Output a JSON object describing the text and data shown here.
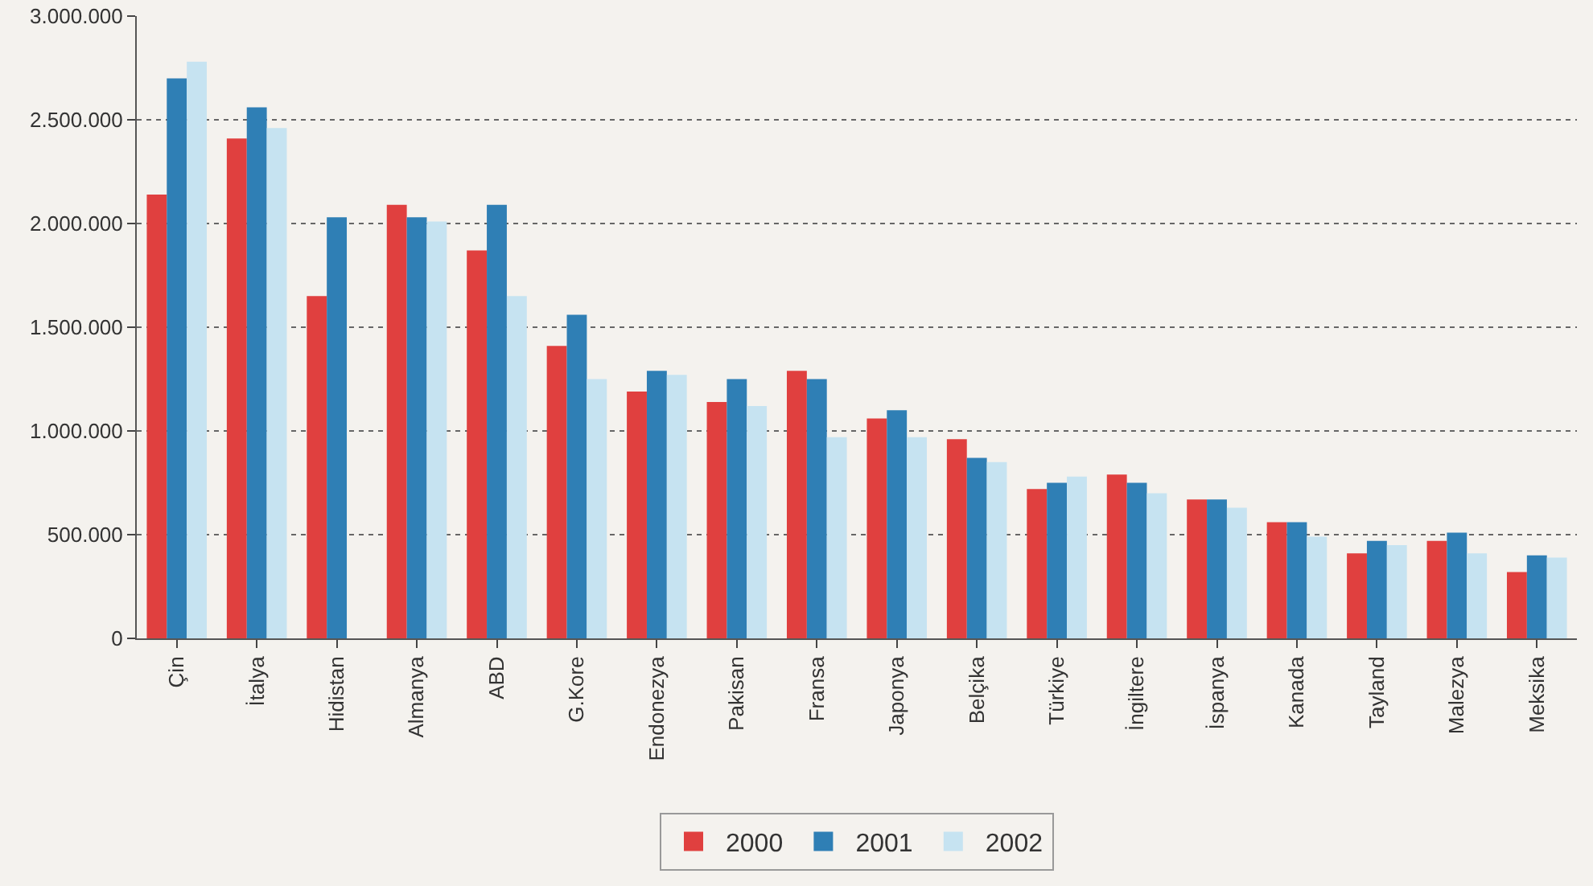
{
  "chart_data": {
    "type": "bar",
    "categories": [
      "Çin",
      "İtalya",
      "Hidistan",
      "Almanya",
      "ABD",
      "G.Kore",
      "Endonezya",
      "Pakisan",
      "Fransa",
      "Japonya",
      "Belçika",
      "Türkiye",
      "İngiltere",
      "İspanya",
      "Kanada",
      "Tayland",
      "Malezya",
      "Meksika"
    ],
    "series": [
      {
        "name": "2000",
        "color": "#e0403f",
        "values": [
          2140000,
          2410000,
          1650000,
          2090000,
          1870000,
          1410000,
          1190000,
          1140000,
          1290000,
          1060000,
          960000,
          720000,
          790000,
          670000,
          560000,
          410000,
          470000,
          320000
        ]
      },
      {
        "name": "2001",
        "color": "#2f7fb5",
        "values": [
          2700000,
          2560000,
          2030000,
          2030000,
          2090000,
          1560000,
          1290000,
          1250000,
          1250000,
          1100000,
          870000,
          750000,
          750000,
          670000,
          560000,
          470000,
          510000,
          400000
        ]
      },
      {
        "name": "2002",
        "color": "#c6e3f1",
        "values": [
          2780000,
          2460000,
          null,
          2010000,
          1650000,
          1250000,
          1270000,
          1120000,
          970000,
          970000,
          850000,
          780000,
          700000,
          630000,
          490000,
          450000,
          410000,
          390000
        ]
      }
    ],
    "ylim": [
      0,
      3000000
    ],
    "yticks": [
      {
        "value": 0,
        "label": "0"
      },
      {
        "value": 500000,
        "label": "500.000"
      },
      {
        "value": 1000000,
        "label": "1.000.000"
      },
      {
        "value": 1500000,
        "label": "1.500.000"
      },
      {
        "value": 2000000,
        "label": "2.000.000"
      },
      {
        "value": 2500000,
        "label": "2.500.000"
      },
      {
        "value": 3000000,
        "label": "3.000.000"
      }
    ],
    "grid": "y",
    "legend": "bottom"
  }
}
